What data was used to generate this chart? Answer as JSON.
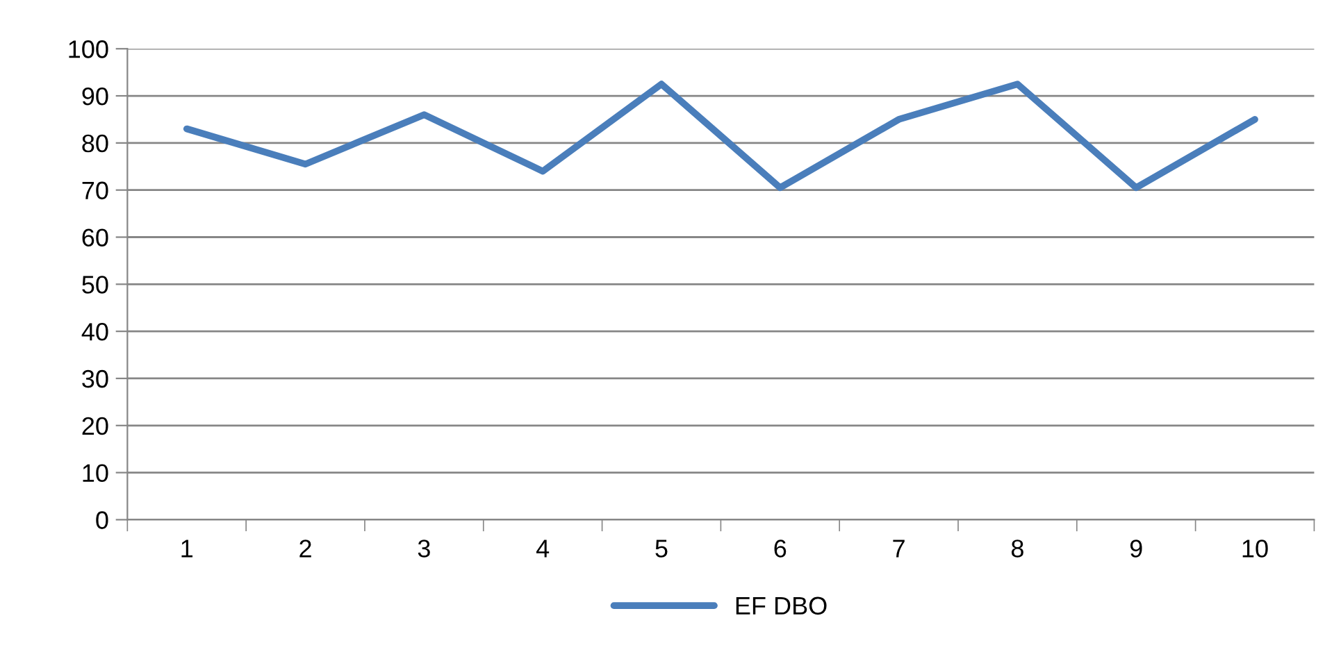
{
  "chart_data": {
    "type": "line",
    "categories": [
      "1",
      "2",
      "3",
      "4",
      "5",
      "6",
      "7",
      "8",
      "9",
      "10"
    ],
    "series": [
      {
        "name": "EF DBO",
        "color": "#4a7ebb",
        "values": [
          83,
          75.5,
          86,
          74,
          92.5,
          70.5,
          85,
          92.5,
          70.5,
          85
        ]
      }
    ],
    "ylim": [
      0,
      100
    ],
    "yticks": [
      0,
      10,
      20,
      30,
      40,
      50,
      60,
      70,
      80,
      90,
      100
    ],
    "grid": "y",
    "legend": "bottom",
    "marker": "none",
    "line_style": "solid"
  }
}
